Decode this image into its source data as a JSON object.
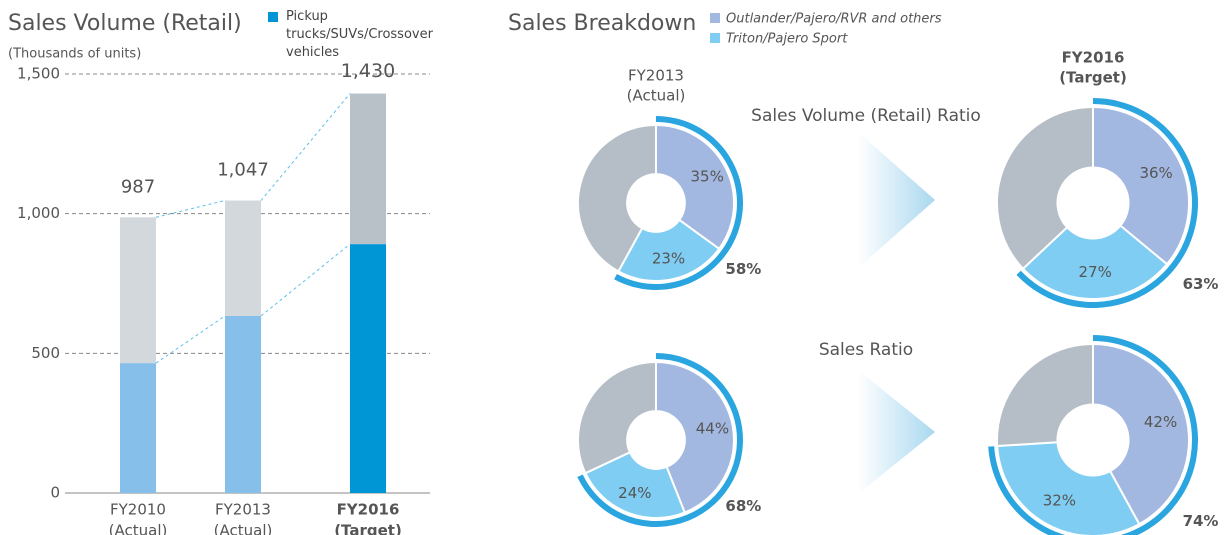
{
  "chart_data": [
    {
      "type": "stacked-bar",
      "title": "Sales Volume (Retail)",
      "ylabel": "(Thousands of units)",
      "categories": [
        [
          "FY2010",
          "(Actual)"
        ],
        [
          "FY2013",
          "(Actual)"
        ],
        [
          "FY2016",
          "(Target)"
        ]
      ],
      "series": [
        {
          "name": "Pickup trucks/SUVs/Crossover vehicles",
          "color": "#0096d6",
          "colors": [
            "#85bfea",
            "#85bfea",
            "#0096d6"
          ],
          "values": [
            465,
            634,
            891
          ]
        },
        {
          "colors": [
            "#d3d8dc",
            "#d3d8dc",
            "#b8c1c8"
          ],
          "values": [
            522,
            413,
            539
          ]
        }
      ],
      "totals": [
        987,
        1047,
        1430
      ],
      "total_labels": [
        "987",
        "1,047",
        "1,430"
      ],
      "ylim": [
        0,
        1500
      ],
      "yticks": [
        0,
        500,
        {
          "value": 1000,
          "label": "1,000"
        },
        {
          "value": 1500,
          "label": "1,500"
        }
      ],
      "grid": true
    },
    {
      "type": "donut",
      "title": "Sales Breakdown",
      "series": [
        {
          "name": "Outlander/Pajero/RVR and others",
          "color": "#a3b8e0"
        },
        {
          "name": "Triton/Pajero Sport",
          "color": "#7fcdf2"
        }
      ],
      "rest_color": "#b5bec6",
      "ring_color": "#2aa5e0",
      "columns": [
        [
          "FY2013",
          "(Actual)"
        ],
        [
          "FY2016",
          "(Target)"
        ]
      ],
      "rows": [
        "Sales Volume (Retail) Ratio",
        "Sales Ratio"
      ],
      "donuts": [
        {
          "values": [
            35,
            23
          ],
          "value_labels": [
            "35%",
            "23%"
          ],
          "total": 58,
          "total_label": "58%"
        },
        {
          "values": [
            36,
            27
          ],
          "value_labels": [
            "36%",
            "27%"
          ],
          "total": 63,
          "total_label": "63%"
        },
        {
          "values": [
            44,
            24
          ],
          "value_labels": [
            "44%",
            "24%"
          ],
          "total": 68,
          "total_label": "68%"
        },
        {
          "values": [
            42,
            32
          ],
          "value_labels": [
            "42%",
            "32%"
          ],
          "total": 74,
          "total_label": "74%"
        }
      ]
    }
  ]
}
